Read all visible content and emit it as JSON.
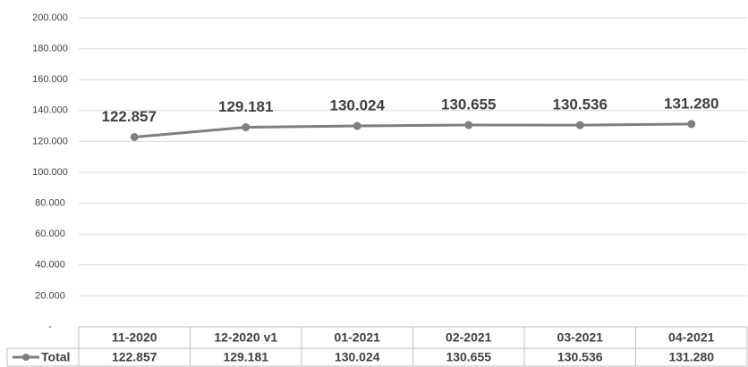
{
  "chart_data": {
    "type": "line",
    "categories": [
      "11-2020",
      "12-2020 v1",
      "01-2021",
      "02-2021",
      "03-2021",
      "04-2021"
    ],
    "series": [
      {
        "name": "Total",
        "color": "#7f7f7f",
        "values": [
          122857,
          129181,
          130024,
          130655,
          130536,
          131280
        ],
        "value_labels": [
          "122.857",
          "129.181",
          "130.024",
          "130.655",
          "130.536",
          "131.280"
        ]
      }
    ],
    "ylim": [
      0,
      200000
    ],
    "yticks": [
      {
        "value": 0,
        "label": "-"
      },
      {
        "value": 20000,
        "label": "20.000"
      },
      {
        "value": 40000,
        "label": "40.000"
      },
      {
        "value": 60000,
        "label": "60.000"
      },
      {
        "value": 80000,
        "label": "80.000"
      },
      {
        "value": 100000,
        "label": "100.000"
      },
      {
        "value": 120000,
        "label": "120.000"
      },
      {
        "value": 140000,
        "label": "140.000"
      },
      {
        "value": 160000,
        "label": "160.000"
      },
      {
        "value": 180000,
        "label": "180.000"
      },
      {
        "value": 200000,
        "label": "200.000"
      }
    ],
    "grid": true
  }
}
